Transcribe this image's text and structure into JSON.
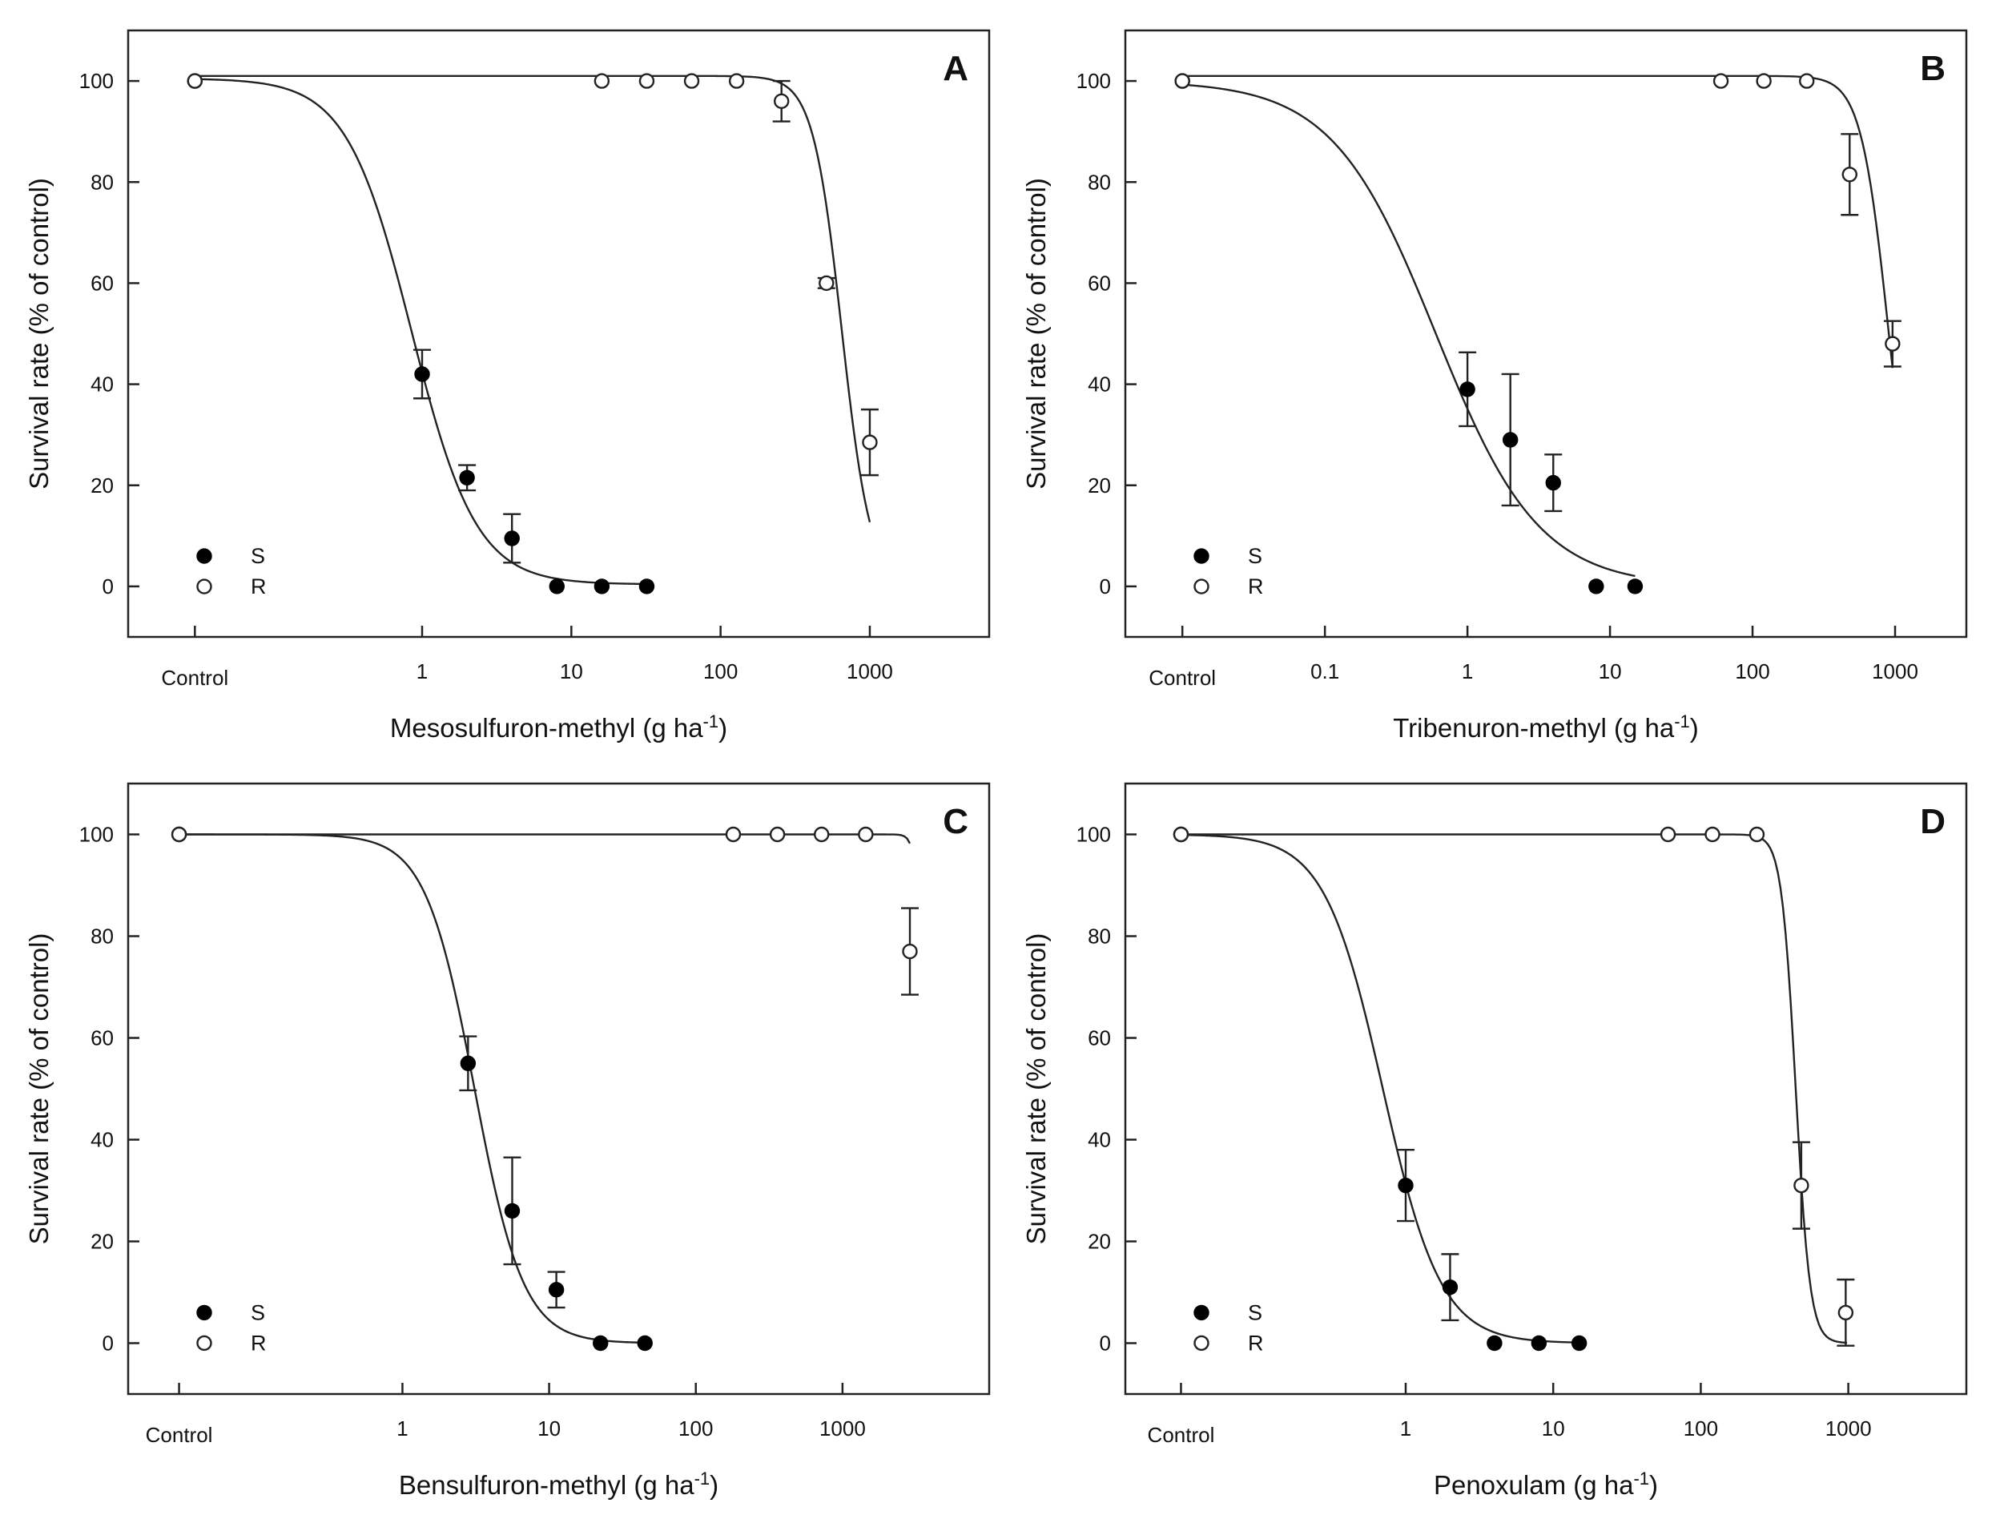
{
  "chart_data": [
    {
      "type": "scatter",
      "panel": "A",
      "xscale": "log",
      "xlabel": "Mesosulfuron-methyl (g ha",
      "xlabel_sup": "-1",
      "xlabel_end": ")",
      "ylabel": "Survival rate (% of control)",
      "ylim": [
        -10,
        110
      ],
      "yticks": [
        0,
        20,
        40,
        60,
        80,
        100
      ],
      "control_label": "Control",
      "control_x": 0.03,
      "x_min_log": -1.97,
      "x_max_log": 3.8,
      "xticks": [
        {
          "value": 1,
          "label": "1"
        },
        {
          "value": 10,
          "label": "10"
        },
        {
          "value": 100,
          "label": "100"
        },
        {
          "value": 1000,
          "label": "1000"
        }
      ],
      "legend": [
        {
          "label": "S",
          "marker": "filled"
        },
        {
          "label": "R",
          "marker": "open"
        }
      ],
      "series": [
        {
          "name": "S",
          "marker": "filled",
          "fit": {
            "top": 100.5,
            "bottom": 0.4,
            "ed50": 0.85,
            "b": 2.0,
            "x_from": 0.03,
            "x_to": 32
          },
          "x": [
            0.03,
            1,
            2,
            4,
            8,
            16,
            32
          ],
          "y": [
            100,
            42,
            21.5,
            9.5,
            0,
            0,
            0
          ],
          "err": [
            0,
            4.8,
            2.5,
            4.8,
            0,
            0,
            0
          ]
        },
        {
          "name": "R",
          "marker": "open",
          "fit": {
            "top": 101,
            "bottom": 0,
            "ed50": 650,
            "b": 4.5,
            "x_from": 0.03,
            "x_to": 1000
          },
          "x": [
            0.03,
            16,
            32,
            64,
            128,
            256,
            512,
            1000
          ],
          "y": [
            100,
            100,
            100,
            100,
            100,
            96,
            60,
            28.5
          ],
          "err": [
            0,
            0,
            0,
            0,
            0,
            4,
            1,
            6.5
          ]
        }
      ]
    },
    {
      "type": "scatter",
      "panel": "B",
      "xscale": "log",
      "xlabel": "Tribenuron-methyl (g ha",
      "xlabel_sup": "-1",
      "xlabel_end": ")",
      "ylabel": "Survival rate (% of control)",
      "ylim": [
        -10,
        110
      ],
      "yticks": [
        0,
        20,
        40,
        60,
        80,
        100
      ],
      "control_label": "Control",
      "control_x": 0.01,
      "x_min_log": -2.4,
      "x_max_log": 3.5,
      "xticks": [
        {
          "value": 0.1,
          "label": "0.1"
        },
        {
          "value": 1,
          "label": "1"
        },
        {
          "value": 10,
          "label": "10"
        },
        {
          "value": 100,
          "label": "100"
        },
        {
          "value": 1000,
          "label": "1000"
        }
      ],
      "legend": [
        {
          "label": "S",
          "marker": "filled"
        },
        {
          "label": "R",
          "marker": "open"
        }
      ],
      "series": [
        {
          "name": "S",
          "marker": "filled",
          "fit": {
            "top": 100,
            "bottom": 0,
            "ed50": 0.6,
            "b": 1.2,
            "x_from": 0.01,
            "x_to": 15
          },
          "x": [
            0.01,
            1,
            2,
            4,
            8,
            15
          ],
          "y": [
            100,
            39,
            29,
            20.5,
            0,
            0
          ],
          "err": [
            0,
            7.3,
            13,
            5.6,
            0,
            0
          ]
        },
        {
          "name": "R",
          "marker": "open",
          "fit": {
            "top": 101,
            "bottom": 0,
            "ed50": 900,
            "b": 4.5,
            "x_from": 0.01,
            "x_to": 960
          },
          "x": [
            0.01,
            60,
            120,
            240,
            480,
            960
          ],
          "y": [
            100,
            100,
            100,
            100,
            81.5,
            48
          ],
          "err": [
            0,
            0,
            0,
            0,
            8,
            4.5
          ]
        }
      ]
    },
    {
      "type": "scatter",
      "panel": "C",
      "xscale": "log",
      "xlabel": "Bensulfuron-methyl (g ha",
      "xlabel_sup": "-1",
      "xlabel_end": ")",
      "ylabel": "Survival rate (% of control)",
      "ylim": [
        -10,
        110
      ],
      "yticks": [
        0,
        20,
        40,
        60,
        80,
        100
      ],
      "control_label": "Control",
      "control_x": 0.03,
      "x_min_log": -1.87,
      "x_max_log": 4.0,
      "xticks": [
        {
          "value": 1,
          "label": "1"
        },
        {
          "value": 10,
          "label": "10"
        },
        {
          "value": 100,
          "label": "100"
        },
        {
          "value": 1000,
          "label": "1000"
        }
      ],
      "legend": [
        {
          "label": "S",
          "marker": "filled"
        },
        {
          "label": "R",
          "marker": "open"
        }
      ],
      "series": [
        {
          "name": "S",
          "marker": "filled",
          "fit": {
            "top": 100,
            "bottom": 0,
            "ed50": 3.1,
            "b": 2.6,
            "x_from": 0.03,
            "x_to": 45
          },
          "x": [
            0.03,
            2.8,
            5.6,
            11.2,
            22.4,
            45
          ],
          "y": [
            100,
            55,
            26,
            10.5,
            0,
            0
          ],
          "err": [
            0,
            5.3,
            10.5,
            3.5,
            0,
            0
          ]
        },
        {
          "name": "R",
          "marker": "open",
          "fit": {
            "top": 100,
            "bottom": 0,
            "ed50": 3600,
            "b": 18,
            "x_from": 0.03,
            "x_to": 2880
          },
          "x": [
            0.03,
            180,
            360,
            720,
            1440,
            2880
          ],
          "y": [
            100,
            100,
            100,
            100,
            100,
            77
          ],
          "err": [
            0,
            0,
            0,
            0,
            0,
            8.5
          ]
        }
      ]
    },
    {
      "type": "scatter",
      "panel": "D",
      "xscale": "log",
      "xlabel": "Penoxulam (g ha",
      "xlabel_sup": "-1",
      "xlabel_end": ")",
      "ylabel": "Survival rate (% of control)",
      "ylim": [
        -10,
        110
      ],
      "yticks": [
        0,
        20,
        40,
        60,
        80,
        100
      ],
      "control_label": "Control",
      "control_x": 0.03,
      "x_min_log": -1.9,
      "x_max_log": 3.8,
      "xticks": [
        {
          "value": 1,
          "label": "1"
        },
        {
          "value": 10,
          "label": "10"
        },
        {
          "value": 100,
          "label": "100"
        },
        {
          "value": 1000,
          "label": "1000"
        }
      ],
      "legend": [
        {
          "label": "S",
          "marker": "filled"
        },
        {
          "label": "R",
          "marker": "open"
        }
      ],
      "series": [
        {
          "name": "S",
          "marker": "filled",
          "fit": {
            "top": 100,
            "bottom": 0,
            "ed50": 0.7,
            "b": 2.2,
            "x_from": 0.03,
            "x_to": 15
          },
          "x": [
            0.03,
            1,
            2,
            4,
            8,
            15
          ],
          "y": [
            100,
            31,
            11,
            0,
            0,
            0
          ],
          "err": [
            0,
            7,
            6.5,
            0,
            0,
            0
          ]
        },
        {
          "name": "R",
          "marker": "open",
          "fit": {
            "top": 100,
            "bottom": 0,
            "ed50": 440,
            "b": 9,
            "x_from": 0.03,
            "x_to": 980
          },
          "x": [
            0.03,
            60,
            120,
            240,
            480,
            960
          ],
          "y": [
            100,
            100,
            100,
            100,
            31,
            6
          ],
          "err": [
            0,
            0,
            0,
            0,
            8.5,
            6.5
          ]
        }
      ]
    }
  ]
}
